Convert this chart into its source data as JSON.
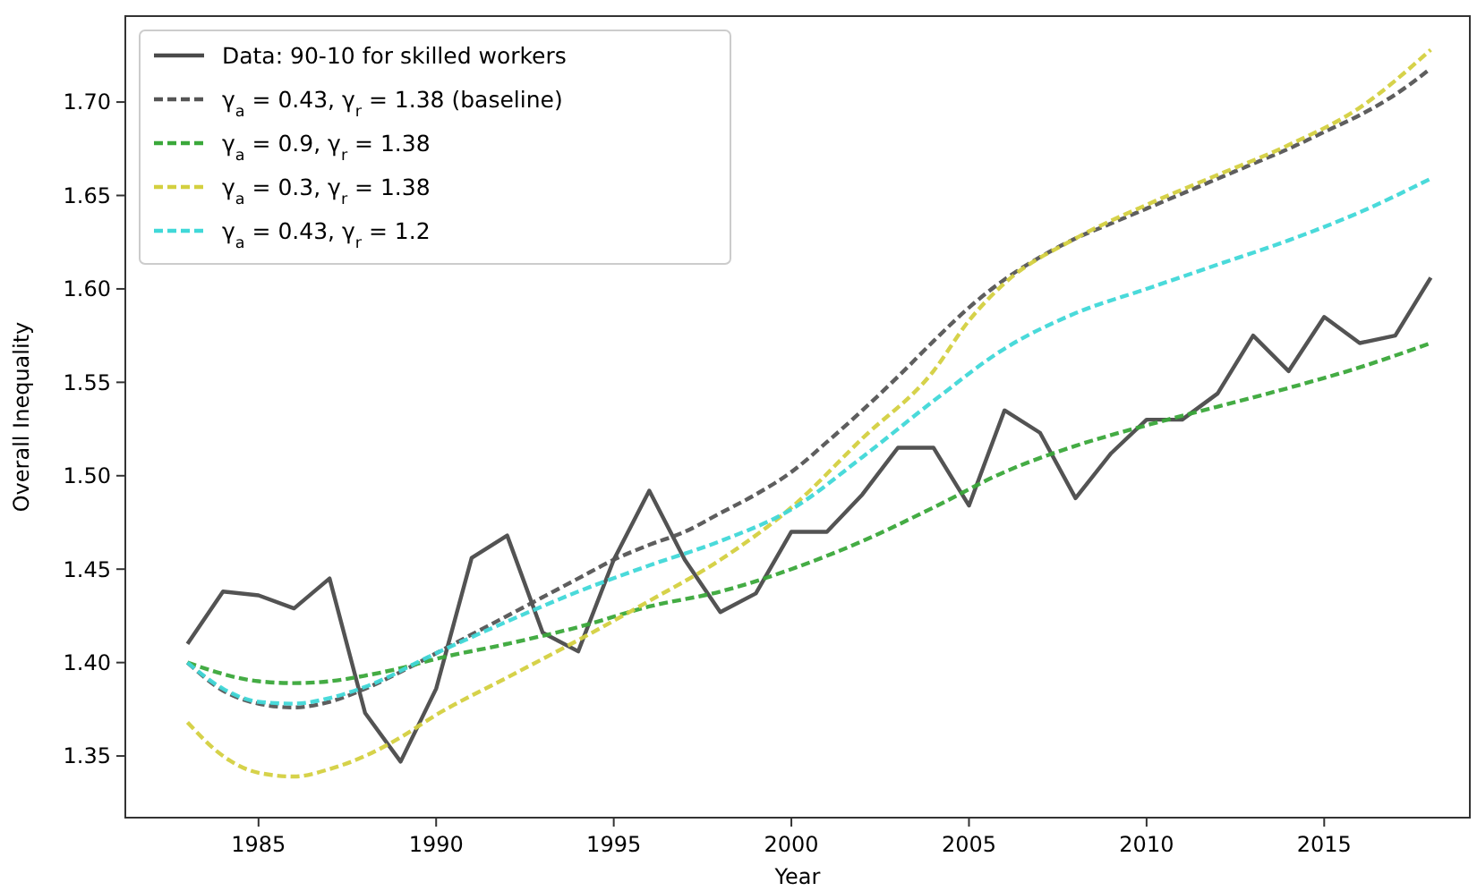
{
  "chart_data": {
    "type": "line",
    "xlabel": "Year",
    "ylabel": "Overall Inequality",
    "xlim": [
      1981.25,
      2019.1
    ],
    "ylim": [
      1.317,
      1.746
    ],
    "xticks": [
      1985,
      1990,
      1995,
      2000,
      2005,
      2010,
      2015
    ],
    "yticks": [
      {
        "value": 1.35,
        "label": "1.35"
      },
      {
        "value": 1.4,
        "label": "1.40"
      },
      {
        "value": 1.45,
        "label": "1.45"
      },
      {
        "value": 1.5,
        "label": "1.50"
      },
      {
        "value": 1.55,
        "label": "1.55"
      },
      {
        "value": 1.6,
        "label": "1.60"
      },
      {
        "value": 1.65,
        "label": "1.65"
      },
      {
        "value": 1.7,
        "label": "1.70"
      }
    ],
    "legend": "top left",
    "grid": false,
    "series": [
      {
        "name": "Data: 90-10 for skilled workers",
        "color": "#4a4a4a",
        "line_style": "solid",
        "x": [
          1983,
          1984,
          1985,
          1986,
          1987,
          1988,
          1989,
          1990,
          1991,
          1992,
          1993,
          1994,
          1995,
          1996,
          1997,
          1998,
          1999,
          2000,
          2001,
          2002,
          2003,
          2004,
          2005,
          2006,
          2007,
          2008,
          2009,
          2010,
          2011,
          2012,
          2013,
          2014,
          2015,
          2016,
          2017,
          2018
        ],
        "values": [
          1.41,
          1.438,
          1.436,
          1.429,
          1.445,
          1.373,
          1.347,
          1.386,
          1.456,
          1.468,
          1.416,
          1.406,
          1.455,
          1.492,
          1.455,
          1.427,
          1.437,
          1.47,
          1.47,
          1.49,
          1.515,
          1.515,
          1.484,
          1.535,
          1.523,
          1.488,
          1.512,
          1.53,
          1.53,
          1.544,
          1.575,
          1.556,
          1.585,
          1.571,
          1.575,
          1.606
        ]
      },
      {
        "name": "γ$_{a}$ = 0.43, γ$_{r}$ = 1.38 (baseline)",
        "color": "#555555",
        "line_style": "dashed",
        "x": [
          1983,
          1984,
          1985,
          1986,
          1987,
          1988,
          1989,
          1990,
          1991,
          1992,
          1993,
          1994,
          1995,
          1996,
          1997,
          1998,
          1999,
          2000,
          2001,
          2002,
          2003,
          2004,
          2005,
          2006,
          2007,
          2008,
          2009,
          2010,
          2011,
          2012,
          2013,
          2014,
          2015,
          2016,
          2017,
          2018
        ],
        "values": [
          1.4,
          1.385,
          1.378,
          1.376,
          1.379,
          1.386,
          1.395,
          1.405,
          1.415,
          1.425,
          1.435,
          1.445,
          1.455,
          1.463,
          1.47,
          1.48,
          1.49,
          1.502,
          1.518,
          1.535,
          1.553,
          1.572,
          1.59,
          1.605,
          1.617,
          1.627,
          1.635,
          1.643,
          1.651,
          1.659,
          1.667,
          1.675,
          1.684,
          1.693,
          1.704,
          1.718
        ]
      },
      {
        "name": "γ$_{a}$ = 0.9, γ$_{r}$ = 1.38",
        "color": "#3aa83a",
        "line_style": "dashed",
        "x": [
          1983,
          1985,
          1986,
          1987,
          1988,
          1989,
          1990,
          1992,
          1994,
          1996,
          1998,
          2000,
          2002,
          2004,
          2006,
          2008,
          2010,
          2012,
          2014,
          2016,
          2018
        ],
        "values": [
          1.4,
          1.39,
          1.389,
          1.39,
          1.393,
          1.397,
          1.402,
          1.41,
          1.419,
          1.43,
          1.438,
          1.45,
          1.465,
          1.483,
          1.502,
          1.516,
          1.527,
          1.537,
          1.547,
          1.558,
          1.571
        ]
      },
      {
        "name": "γ$_{a}$ = 0.3, γ$_{r}$ = 1.38",
        "color": "#d4d040",
        "line_style": "dashed",
        "x": [
          1983,
          1984,
          1985,
          1986,
          1987,
          1988,
          1989,
          1990,
          1992,
          1994,
          1996,
          1998,
          2000,
          2002,
          2004,
          2005,
          2006,
          2008,
          2010,
          2012,
          2014,
          2016,
          2018
        ],
        "values": [
          1.368,
          1.35,
          1.341,
          1.339,
          1.343,
          1.35,
          1.36,
          1.372,
          1.392,
          1.412,
          1.433,
          1.455,
          1.483,
          1.52,
          1.556,
          1.583,
          1.603,
          1.627,
          1.645,
          1.661,
          1.677,
          1.697,
          1.728
        ]
      },
      {
        "name": "γ$_{a}$ = 0.43, γ$_{r}$ = 1.2",
        "color": "#40d8d8",
        "line_style": "dashed",
        "x": [
          1983,
          1984,
          1985,
          1986,
          1987,
          1988,
          1990,
          1992,
          1994,
          1996,
          1998,
          2000,
          2002,
          2004,
          2006,
          2008,
          2010,
          2012,
          2014,
          2016,
          2018
        ],
        "values": [
          1.4,
          1.386,
          1.379,
          1.378,
          1.381,
          1.387,
          1.405,
          1.422,
          1.438,
          1.452,
          1.465,
          1.482,
          1.51,
          1.54,
          1.568,
          1.587,
          1.6,
          1.613,
          1.626,
          1.641,
          1.659
        ]
      }
    ]
  }
}
